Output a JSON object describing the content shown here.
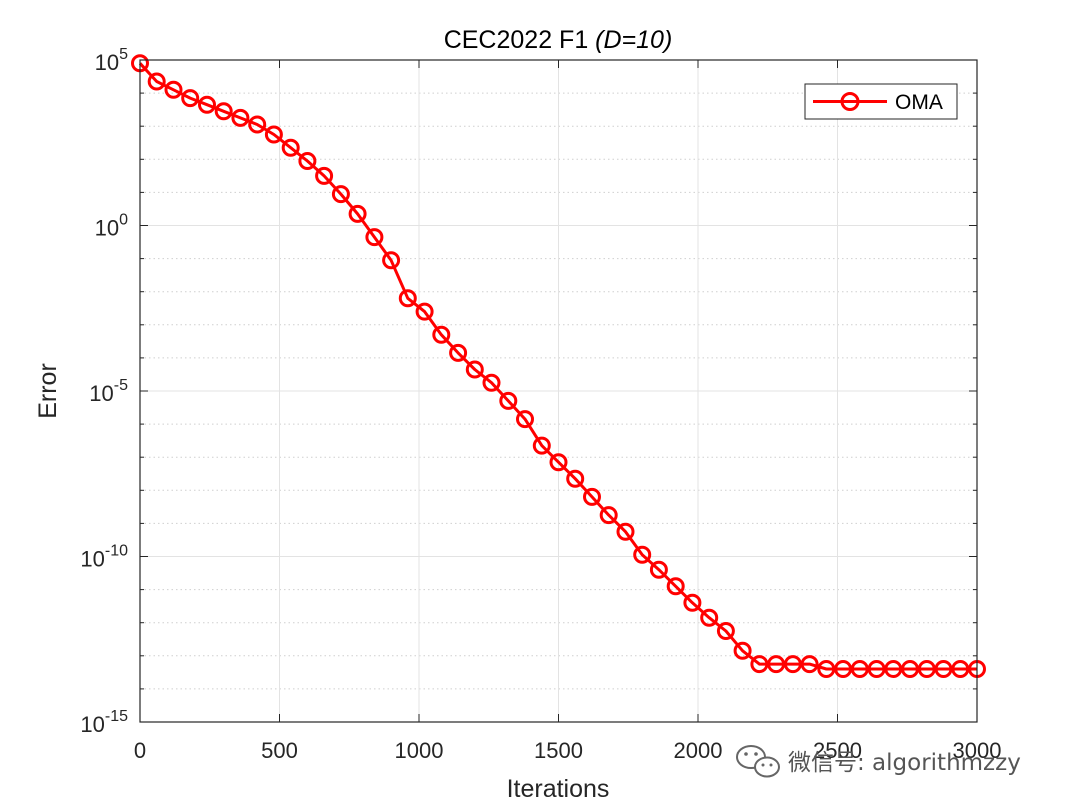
{
  "chart_data": {
    "type": "line",
    "title_main": "CEC2022 F1 ",
    "title_italic": "(D=10)",
    "xlabel": "Iterations",
    "ylabel": "Error",
    "xlim": [
      0,
      3000
    ],
    "ylim_log10": [
      -15,
      5
    ],
    "yscale": "log",
    "grid": true,
    "minor_grid": true,
    "x_ticks": [
      0,
      500,
      1000,
      1500,
      2000,
      2500,
      3000
    ],
    "x_tick_labels": [
      "0",
      "500",
      "1000",
      "1500",
      "2000",
      "2500",
      "3000"
    ],
    "y_ticks_exponent": [
      5,
      0,
      -5,
      -10,
      -15
    ],
    "y_tick_base": "10",
    "y_tick_exponent_labels": [
      "5",
      "0",
      "-5",
      "-10",
      "-15"
    ],
    "legend_position": "top-right",
    "series": [
      {
        "name": "OMA",
        "color": "#ff0000",
        "marker": "circle",
        "x": [
          0,
          60,
          120,
          180,
          240,
          300,
          360,
          420,
          480,
          540,
          600,
          660,
          720,
          780,
          840,
          900,
          960,
          1020,
          1080,
          1140,
          1200,
          1260,
          1320,
          1380,
          1440,
          1500,
          1560,
          1620,
          1680,
          1740,
          1800,
          1860,
          1920,
          1980,
          2040,
          2100,
          2160,
          2220,
          2280,
          2340,
          2400,
          2460,
          2520,
          2580,
          2640,
          2700,
          2760,
          2820,
          2880,
          2940,
          3000
        ],
        "log10_values": [
          4.9,
          4.35,
          4.1,
          3.85,
          3.65,
          3.45,
          3.25,
          3.05,
          2.75,
          2.35,
          1.95,
          1.5,
          0.95,
          0.35,
          -0.35,
          -1.05,
          -2.2,
          -2.6,
          -3.3,
          -3.85,
          -4.35,
          -4.75,
          -5.3,
          -5.85,
          -6.65,
          -7.15,
          -7.65,
          -8.2,
          -8.75,
          -9.25,
          -9.95,
          -10.4,
          -10.9,
          -11.4,
          -11.85,
          -12.25,
          -12.85,
          -13.25,
          -13.25,
          -13.25,
          -13.25,
          -13.4,
          -13.4,
          -13.4,
          -13.4,
          -13.4,
          -13.4,
          -13.4,
          -13.4,
          -13.4,
          -13.4
        ]
      }
    ]
  },
  "legend": {
    "label": "OMA"
  },
  "watermark": {
    "text": "微信号: algorithmzzy",
    "icon": "wechat-bubble-icon"
  }
}
